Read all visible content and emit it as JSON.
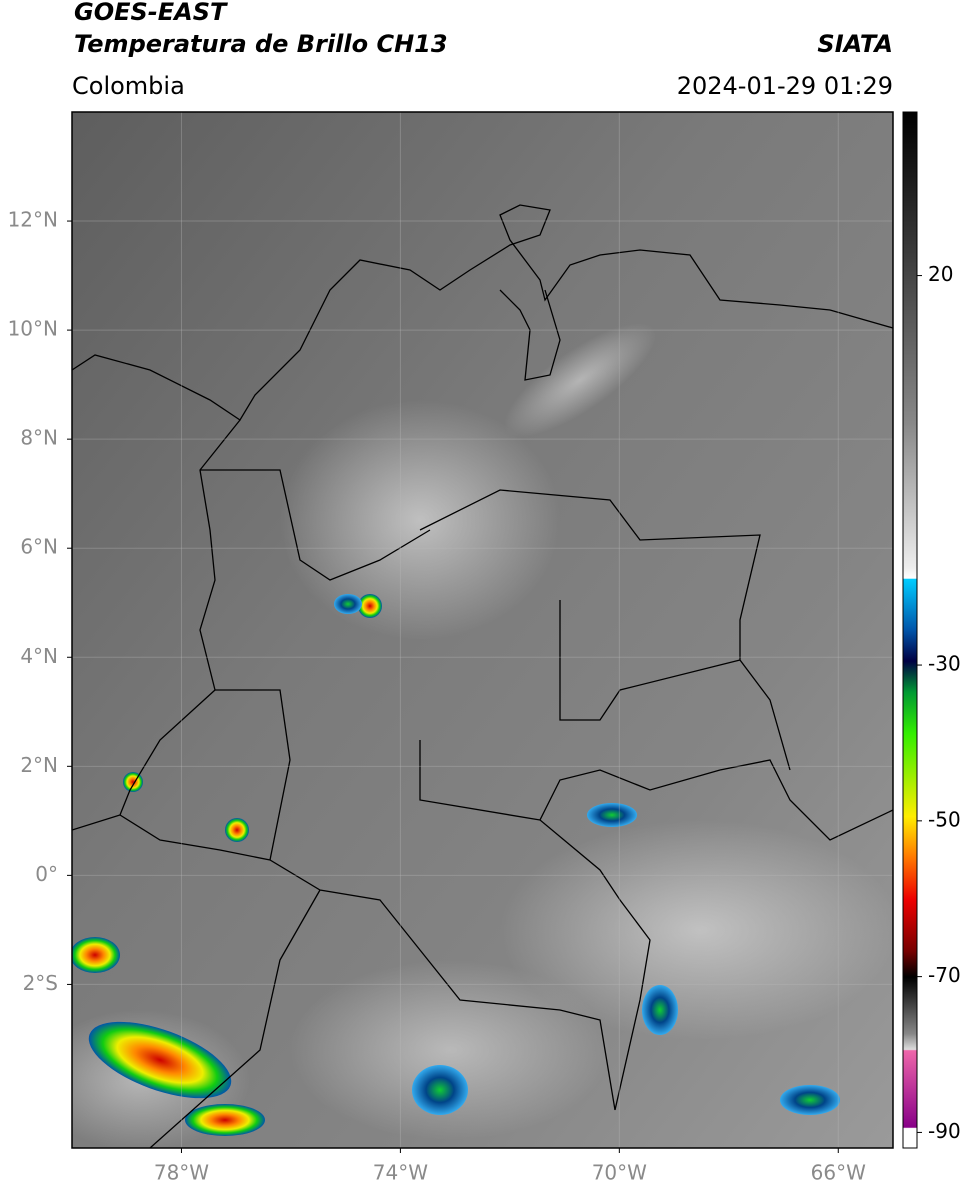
{
  "header": {
    "satellite": "GOES-EAST",
    "product": "Temperatura de Brillo CH13",
    "region": "Colombia",
    "source": "SIATA",
    "timestamp": "2024-01-29 01:29"
  },
  "map": {
    "xlim": [
      -80,
      -65
    ],
    "ylim": [
      -5,
      14
    ],
    "xticks": [
      {
        "value": -78,
        "label": "78°W"
      },
      {
        "value": -74,
        "label": "74°W"
      },
      {
        "value": -70,
        "label": "70°W"
      },
      {
        "value": -66,
        "label": "66°W"
      }
    ],
    "yticks": [
      {
        "value": 12,
        "label": "12°N"
      },
      {
        "value": 10,
        "label": "10°N"
      },
      {
        "value": 8,
        "label": "8°N"
      },
      {
        "value": 6,
        "label": "6°N"
      },
      {
        "value": 4,
        "label": "4°N"
      },
      {
        "value": 2,
        "label": "2°N"
      },
      {
        "value": 0,
        "label": "0°"
      },
      {
        "value": -2,
        "label": "2°S"
      }
    ],
    "grid": true
  },
  "colorbar": {
    "clim": [
      -92,
      41
    ],
    "ticks": [
      20,
      -30,
      -50,
      -70,
      -90
    ]
  }
}
